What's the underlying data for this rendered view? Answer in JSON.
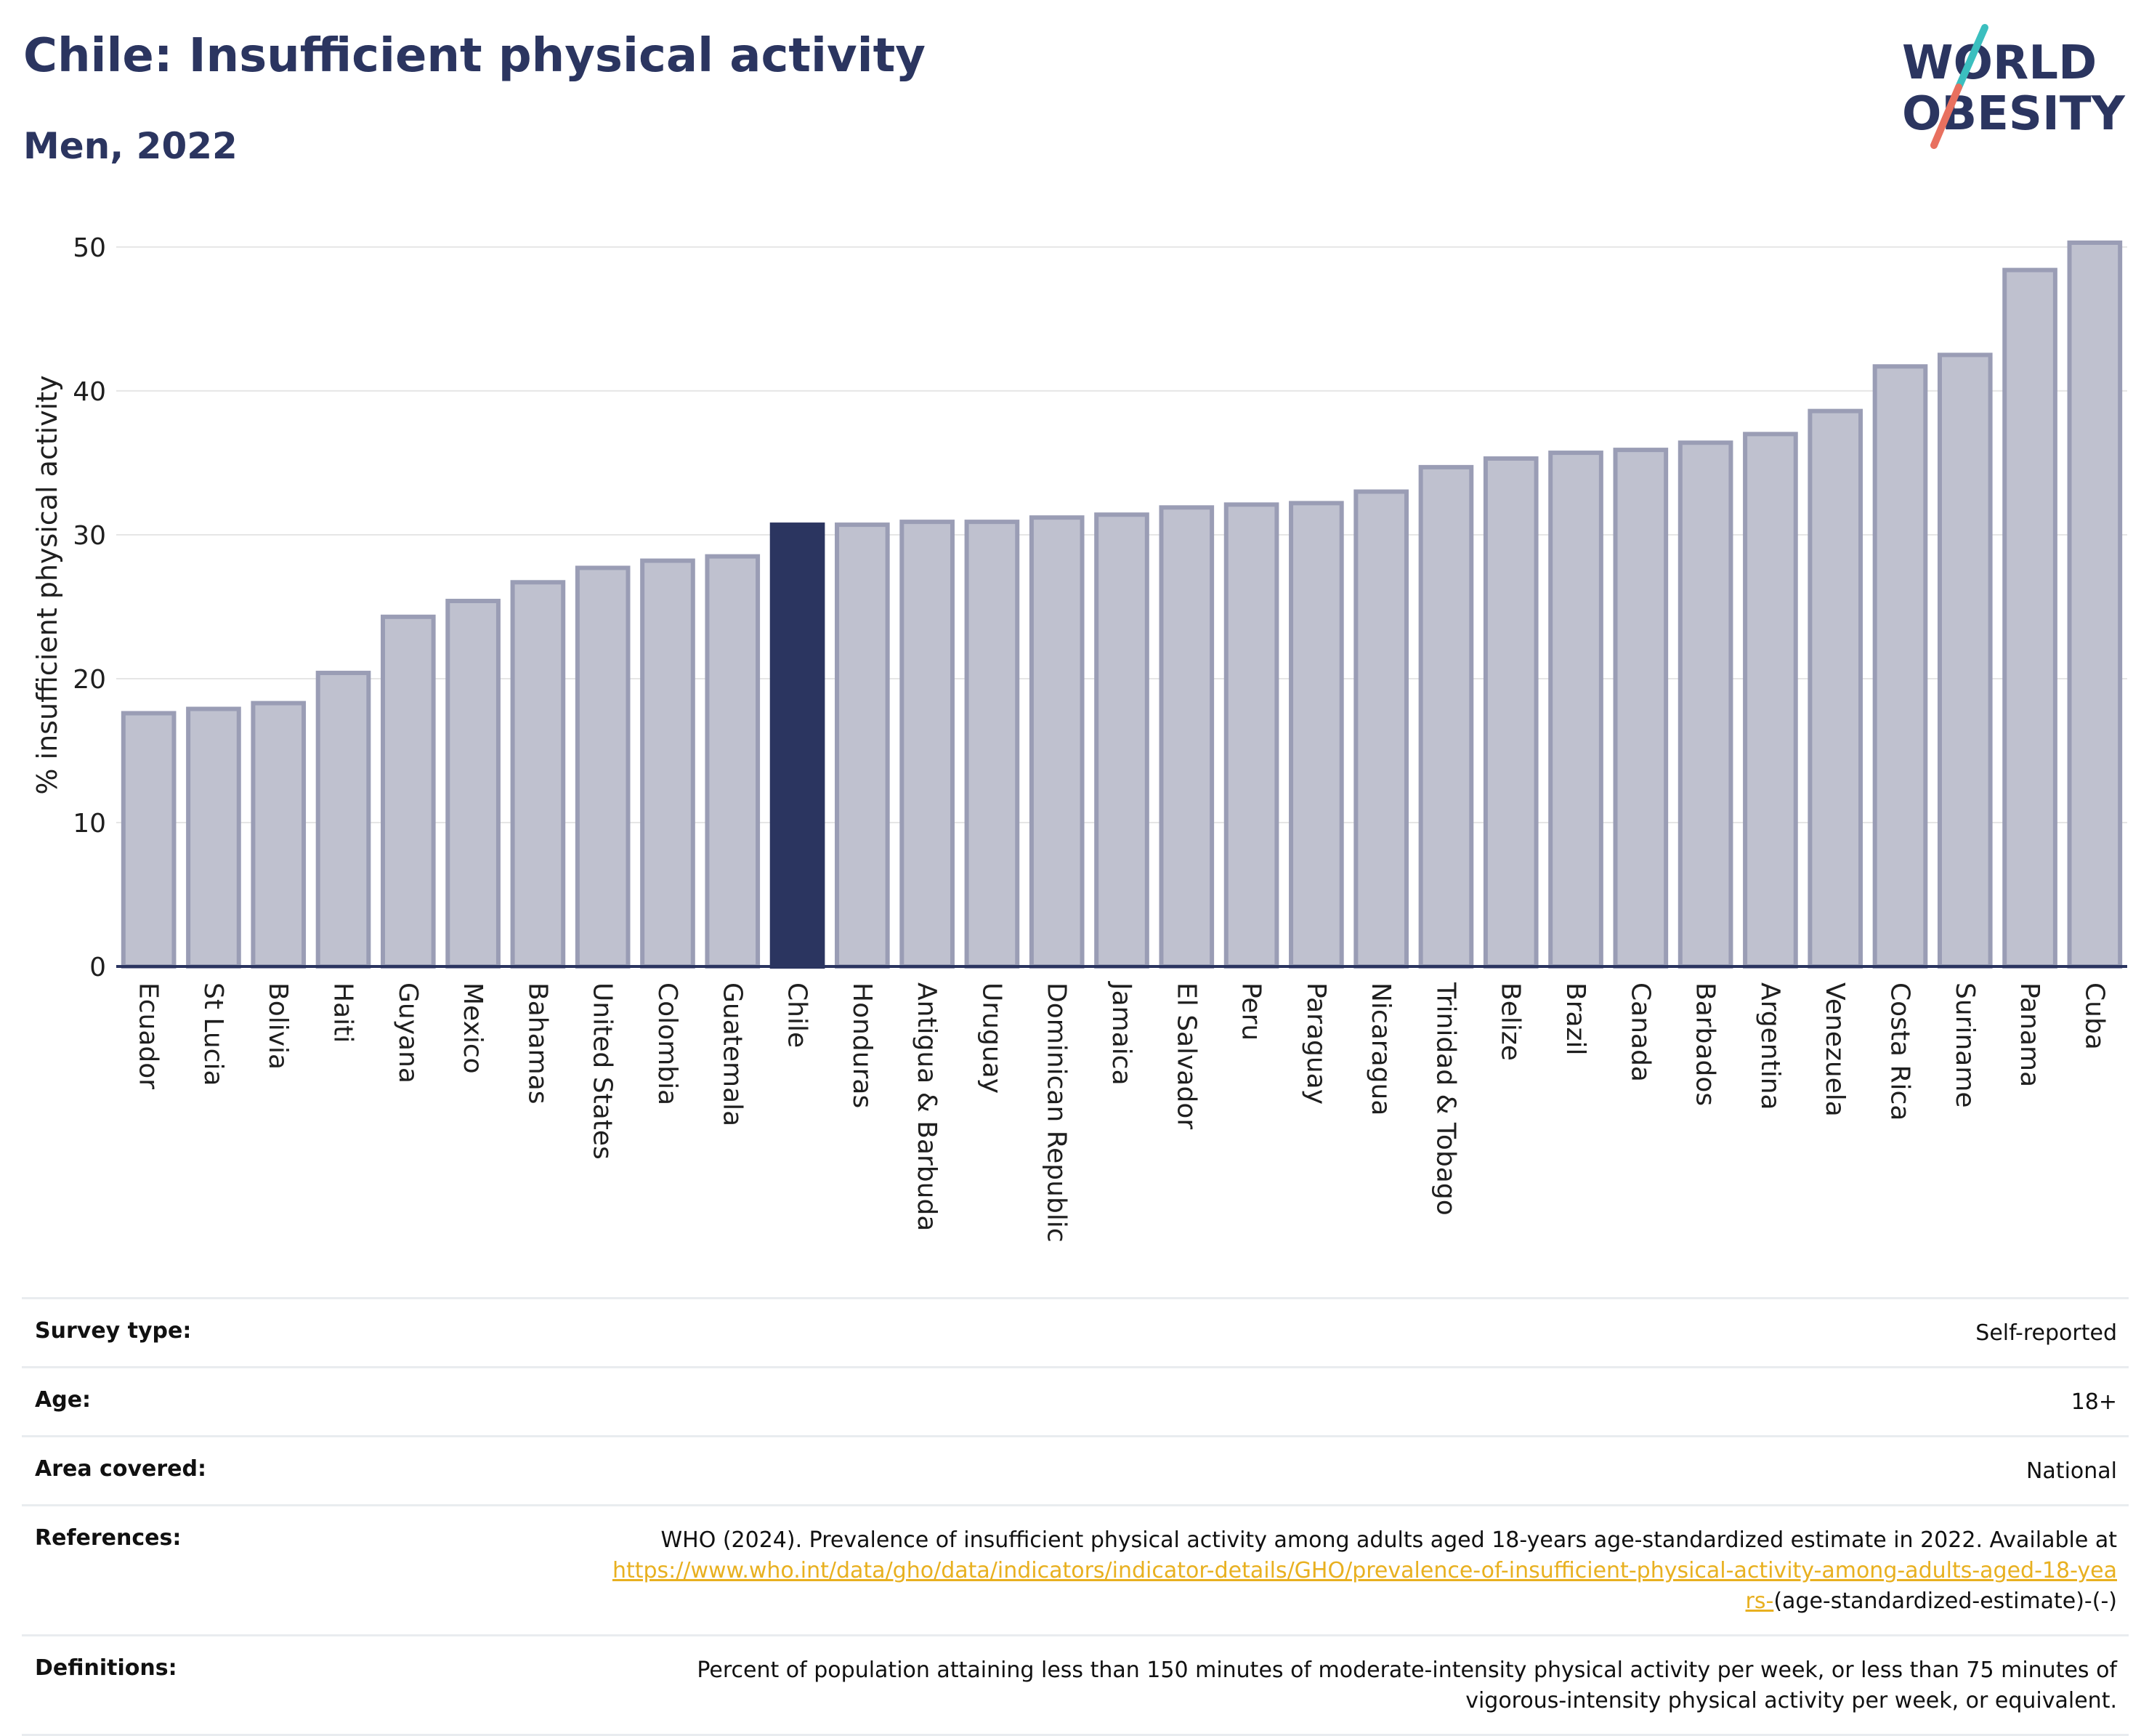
{
  "header": {
    "title": "Chile: Insufficient physical activity",
    "subtitle": "Men, 2022"
  },
  "logo": {
    "line1": "WORLD",
    "line2": "OBESITY",
    "slash_top_color": "#3bbfbf",
    "slash_bottom_color": "#e8705f",
    "text_color": "#2b3560"
  },
  "colors": {
    "bar_fill": "#bfc1cf",
    "bar_stroke": "#9a9db5",
    "highlight_fill": "#2b3560",
    "grid": "#e6e6e6",
    "axis": "#2b3560"
  },
  "chart_data": {
    "type": "bar",
    "ylabel": "% insufficient physical activity",
    "xlabel": "",
    "ylim": [
      0,
      50.5
    ],
    "yticks": [
      0,
      10,
      20,
      30,
      40,
      50
    ],
    "grid": true,
    "highlight": "Chile",
    "categories": [
      "Ecuador",
      "St Lucia",
      "Bolivia",
      "Haiti",
      "Guyana",
      "Mexico",
      "Bahamas",
      "United States",
      "Colombia",
      "Guatemala",
      "Chile",
      "Honduras",
      "Antigua & Barbuda",
      "Uruguay",
      "Dominican Republic",
      "Jamaica",
      "El Salvador",
      "Peru",
      "Paraguay",
      "Nicaragua",
      "Trinidad & Tobago",
      "Belize",
      "Brazil",
      "Canada",
      "Barbados",
      "Argentina",
      "Venezuela",
      "Costa Rica",
      "Suriname",
      "Panama",
      "Cuba"
    ],
    "values": [
      17.6,
      17.9,
      18.3,
      20.4,
      24.3,
      25.4,
      26.7,
      27.7,
      28.2,
      28.5,
      30.7,
      30.7,
      30.9,
      30.9,
      31.2,
      31.4,
      31.9,
      32.1,
      32.2,
      33.0,
      34.7,
      35.3,
      35.7,
      35.9,
      36.4,
      37.0,
      38.6,
      41.7,
      42.5,
      48.4,
      50.3
    ]
  },
  "meta": {
    "survey_type_label": "Survey type:",
    "survey_type_value": "Self-reported",
    "age_label": "Age:",
    "age_value": "18+",
    "area_label": "Area covered:",
    "area_value": "National",
    "references_label": "References:",
    "references_text": "WHO (2024). Prevalence of insufficient physical activity among adults aged 18-years age-standardized estimate in 2022. Available at",
    "references_link": "https://www.who.int/data/gho/data/indicators/indicator-details/GHO/prevalence-of-insufficient-physical-activity-among-adults-aged-18-years-",
    "references_suffix": "(age-standardized-estimate)-(-)",
    "definitions_label": "Definitions:",
    "definitions_value": "Percent of population attaining less than 150 minutes of moderate-intensity physical activity per week, or less than 75 minutes of vigorous-intensity physical activity per week, or equivalent."
  }
}
